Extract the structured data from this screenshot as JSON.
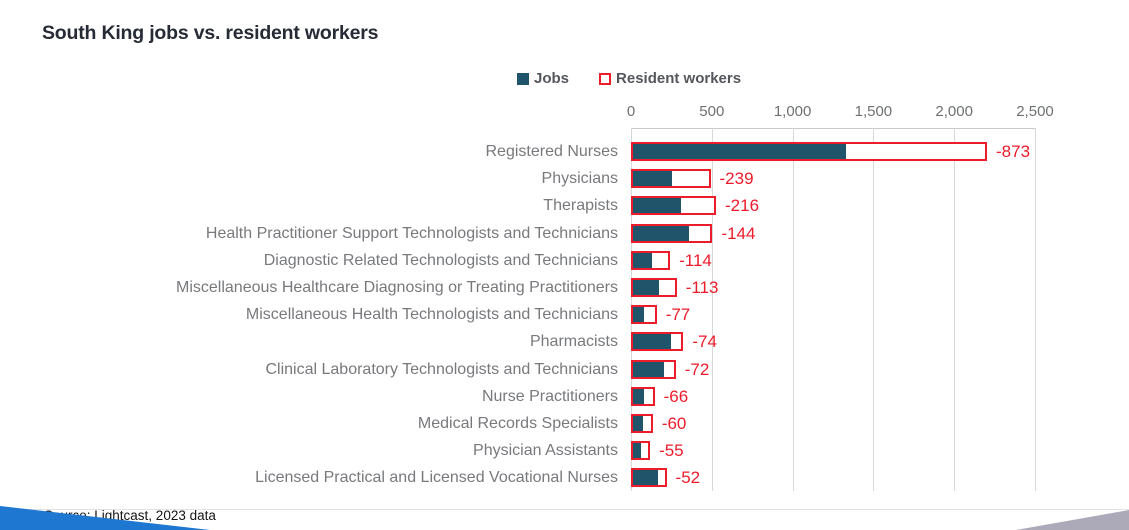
{
  "title": "South King jobs vs. resident workers",
  "legend": {
    "jobs_label": "Jobs",
    "resident_label": "Resident workers"
  },
  "source": "Source: Lightcast, 2023 data",
  "colors": {
    "jobs_fill": "#20546A",
    "resident_outline": "#EC1C2B",
    "diff_label": "#EC1C2B",
    "title_text": "#262B36",
    "category_text": "#77797C",
    "tick_text": "#6E7173",
    "gridline": "#D9D9D9",
    "accent_blue_wedge": "#1E78D2",
    "accent_gray_wedge": "#ACAAB9"
  },
  "chart_data": {
    "type": "bar",
    "orientation": "horizontal",
    "title": "South King jobs vs. resident workers",
    "legend_entries": [
      "Jobs",
      "Resident workers"
    ],
    "legend_position": "top",
    "grid": true,
    "x_axis": {
      "position": "top",
      "xlim": [
        0,
        2500
      ],
      "tick_values": [
        0,
        500,
        1000,
        1500,
        2000,
        2500
      ],
      "tick_labels": [
        "0",
        "500",
        "1,000",
        "1,500",
        "2,000",
        "2,500"
      ]
    },
    "categories": [
      "Registered Nurses",
      "Physicians",
      "Therapists",
      "Health Practitioner Support Technologists and Technicians",
      "Diagnostic Related Technologists and Technicians",
      "Miscellaneous Healthcare Diagnosing or Treating Practitioners",
      "Miscellaneous Health Technologists and Technicians",
      "Pharmacists",
      "Clinical Laboratory Technologists and Technicians",
      "Nurse Practitioners",
      "Medical Records Specialists",
      "Physician Assistants",
      "Licensed Practical and Licensed Vocational Nurses"
    ],
    "series": [
      {
        "name": "Jobs",
        "style": "filled",
        "values_estimated": [
          1330,
          253,
          310,
          360,
          128,
          170,
          82,
          250,
          205,
          80,
          75,
          63,
          168
        ]
      },
      {
        "name": "Resident workers",
        "style": "outlined",
        "values_estimated": [
          2203,
          492,
          526,
          504,
          242,
          283,
          159,
          324,
          277,
          146,
          135,
          118,
          220
        ]
      }
    ],
    "diff_labels": [
      "-873",
      "-239",
      "-216",
      "-144",
      "-114",
      "-113",
      "-77",
      "-74",
      "-72",
      "-66",
      "-60",
      "-55",
      "-52"
    ]
  }
}
